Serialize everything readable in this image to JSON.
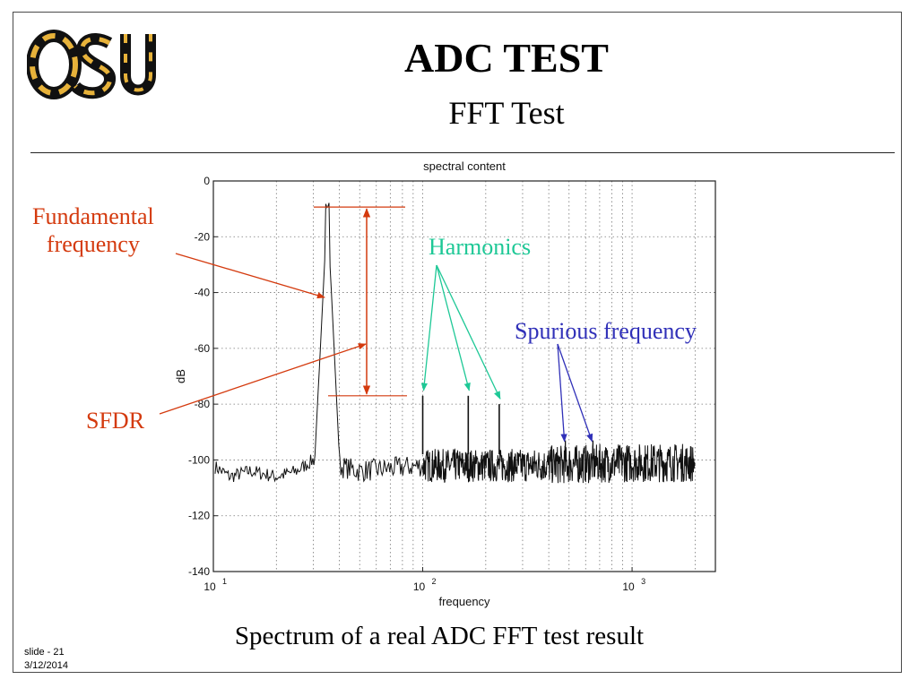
{
  "slide": {
    "title": "ADC TEST",
    "subtitle": "FFT Test",
    "caption": "Spectrum of a real ADC FFT test result",
    "slide_number": "slide - 21",
    "date": "3/12/2014",
    "logo_text": "OSU"
  },
  "annotations": {
    "fundamental": "Fundamental\nfrequency",
    "sfdr": "SFDR",
    "harmonics": "Harmonics",
    "spurious": "Spurious frequency"
  },
  "colors": {
    "fundamental": "#d43a0e",
    "sfdr": "#d43a0e",
    "harmonics": "#1ec896",
    "spurious": "#3030b8",
    "trace": "#111111",
    "logo_gold": "#e7b23a"
  },
  "chart_data": {
    "type": "line",
    "title": "spectral content",
    "xlabel": "frequency",
    "ylabel": "dB",
    "xscale": "log",
    "xlim": [
      10,
      2500
    ],
    "ylim": [
      -140,
      0
    ],
    "x_ticks": [
      10,
      100,
      1000
    ],
    "x_tick_labels": [
      [
        "10",
        "1"
      ],
      [
        "10",
        "2"
      ],
      [
        "10",
        "3"
      ]
    ],
    "y_ticks": [
      0,
      -20,
      -40,
      -60,
      -80,
      -100,
      -120,
      -140
    ],
    "grid": true,
    "fundamental": {
      "x": 35,
      "y": -10
    },
    "harmonics": [
      {
        "x": 100,
        "y": -77
      },
      {
        "x": 165,
        "y": -77
      },
      {
        "x": 232,
        "y": -80
      }
    ],
    "spurs": [
      {
        "x": 480,
        "y": -93
      },
      {
        "x": 650,
        "y": -93
      }
    ],
    "noise_floor": [
      {
        "x": 10,
        "y": -102
      },
      {
        "x": 12,
        "y": -106
      },
      {
        "x": 15,
        "y": -104
      },
      {
        "x": 20,
        "y": -106
      },
      {
        "x": 25,
        "y": -104
      },
      {
        "x": 30,
        "y": -100
      },
      {
        "x": 50,
        "y": -104
      },
      {
        "x": 100,
        "y": -102
      },
      {
        "x": 300,
        "y": -102
      },
      {
        "x": 1000,
        "y": -101
      },
      {
        "x": 2000,
        "y": -101
      }
    ],
    "sfdr_db": [
      -10,
      -77
    ]
  }
}
